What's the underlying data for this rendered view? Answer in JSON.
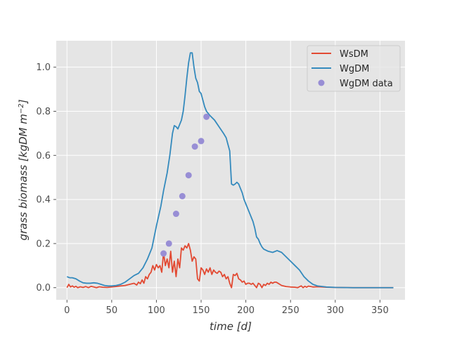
{
  "chart_data": {
    "type": "line",
    "xlabel": "time [d]",
    "ylabel": "grass biomass [kgDM m^-2]",
    "ylabel_parts": {
      "main": "grass biomass [kgDM m",
      "sup": "−2",
      "end": "]"
    },
    "xlim": [
      -12,
      378
    ],
    "ylim": [
      -0.055,
      1.12
    ],
    "xticks": [
      0,
      50,
      100,
      150,
      200,
      250,
      300,
      350
    ],
    "xtick_labels": [
      "0",
      "50",
      "100",
      "150",
      "200",
      "250",
      "300",
      "350"
    ],
    "yticks": [
      0.0,
      0.2,
      0.4,
      0.6,
      0.8,
      1.0
    ],
    "ytick_labels": [
      "0.0",
      "0.2",
      "0.4",
      "0.6",
      "0.8",
      "1.0"
    ],
    "grid": true,
    "legend_position": "top-right",
    "colors": {
      "background": "#e5e5e5",
      "grid": "#ffffff",
      "WsDM": "#e24a33",
      "WgDM": "#348abd",
      "WgDM data": "#988ed5"
    },
    "series": [
      {
        "name": "WsDM",
        "kind": "line",
        "color": "#e24a33",
        "x": [
          0,
          2,
          4,
          6,
          8,
          10,
          12,
          15,
          18,
          21,
          24,
          27,
          30,
          33,
          36,
          40,
          45,
          50,
          55,
          60,
          65,
          70,
          75,
          78,
          80,
          82,
          84,
          86,
          88,
          90,
          92,
          94,
          96,
          98,
          100,
          102,
          104,
          106,
          108,
          110,
          112,
          114,
          116,
          118,
          120,
          122,
          124,
          126,
          128,
          130,
          132,
          134,
          136,
          138,
          140,
          142,
          144,
          146,
          148,
          150,
          152,
          154,
          156,
          158,
          160,
          162,
          164,
          166,
          168,
          170,
          172,
          174,
          176,
          178,
          180,
          182,
          184,
          186,
          188,
          190,
          192,
          194,
          196,
          198,
          200,
          202,
          204,
          206,
          208,
          210,
          212,
          214,
          216,
          218,
          220,
          222,
          224,
          226,
          228,
          230,
          232,
          234,
          236,
          238,
          240,
          245,
          250,
          255,
          258,
          260,
          262,
          264,
          266,
          268,
          270,
          275,
          280,
          290,
          300,
          320,
          340,
          365
        ],
        "values": [
          0.0,
          0.015,
          0.003,
          0.008,
          0.002,
          0.006,
          0.0,
          0.004,
          0.001,
          0.005,
          0.0,
          0.006,
          0.003,
          0.0,
          0.004,
          0.002,
          0.001,
          0.003,
          0.005,
          0.008,
          0.01,
          0.015,
          0.02,
          0.012,
          0.025,
          0.018,
          0.035,
          0.02,
          0.05,
          0.04,
          0.06,
          0.07,
          0.1,
          0.08,
          0.105,
          0.09,
          0.1,
          0.07,
          0.16,
          0.1,
          0.13,
          0.09,
          0.165,
          0.07,
          0.12,
          0.05,
          0.13,
          0.09,
          0.18,
          0.17,
          0.19,
          0.18,
          0.2,
          0.17,
          0.12,
          0.14,
          0.13,
          0.04,
          0.03,
          0.09,
          0.08,
          0.06,
          0.085,
          0.07,
          0.09,
          0.06,
          0.08,
          0.07,
          0.065,
          0.075,
          0.07,
          0.05,
          0.06,
          0.04,
          0.05,
          0.02,
          0.0,
          0.06,
          0.055,
          0.065,
          0.04,
          0.035,
          0.025,
          0.03,
          0.015,
          0.02,
          0.02,
          0.015,
          0.02,
          0.01,
          0.0,
          0.02,
          0.015,
          0.0,
          0.015,
          0.01,
          0.02,
          0.015,
          0.025,
          0.02,
          0.025,
          0.025,
          0.02,
          0.015,
          0.01,
          0.005,
          0.003,
          0.002,
          0.0,
          0.004,
          0.008,
          0.0,
          0.006,
          0.002,
          0.007,
          0.003,
          0.004,
          0.002,
          0.001,
          0.0,
          0.0,
          0.0
        ]
      },
      {
        "name": "WgDM",
        "kind": "line",
        "color": "#348abd",
        "x": [
          0,
          3,
          6,
          10,
          14,
          18,
          22,
          26,
          30,
          34,
          38,
          42,
          46,
          50,
          55,
          60,
          65,
          70,
          75,
          80,
          85,
          90,
          95,
          100,
          105,
          108,
          110,
          112,
          115,
          118,
          120,
          122,
          124,
          126,
          128,
          130,
          132,
          134,
          136,
          138,
          140,
          142,
          144,
          146,
          148,
          150,
          152,
          154,
          156,
          158,
          160,
          165,
          170,
          175,
          178,
          180,
          182,
          184,
          186,
          188,
          190,
          192,
          194,
          196,
          198,
          200,
          205,
          208,
          210,
          212,
          214,
          216,
          218,
          220,
          225,
          230,
          235,
          240,
          245,
          250,
          255,
          260,
          265,
          270,
          275,
          280,
          290,
          300,
          320,
          340,
          365
        ],
        "values": [
          0.05,
          0.045,
          0.045,
          0.04,
          0.03,
          0.022,
          0.02,
          0.02,
          0.022,
          0.02,
          0.015,
          0.01,
          0.008,
          0.008,
          0.01,
          0.015,
          0.025,
          0.04,
          0.055,
          0.065,
          0.09,
          0.13,
          0.18,
          0.28,
          0.37,
          0.44,
          0.48,
          0.52,
          0.6,
          0.7,
          0.735,
          0.73,
          0.72,
          0.74,
          0.76,
          0.8,
          0.87,
          0.95,
          1.02,
          1.065,
          1.065,
          1.0,
          0.95,
          0.93,
          0.89,
          0.88,
          0.85,
          0.82,
          0.8,
          0.79,
          0.78,
          0.76,
          0.73,
          0.7,
          0.68,
          0.65,
          0.62,
          0.47,
          0.465,
          0.47,
          0.478,
          0.47,
          0.45,
          0.43,
          0.4,
          0.38,
          0.33,
          0.3,
          0.27,
          0.23,
          0.22,
          0.2,
          0.185,
          0.175,
          0.165,
          0.16,
          0.168,
          0.16,
          0.14,
          0.12,
          0.1,
          0.08,
          0.05,
          0.03,
          0.015,
          0.008,
          0.003,
          0.001,
          0.0,
          0.0,
          0.0
        ]
      },
      {
        "name": "WgDM data",
        "kind": "scatter",
        "color": "#988ed5",
        "x": [
          108,
          114,
          122,
          129,
          136,
          143,
          150,
          156
        ],
        "values": [
          0.155,
          0.2,
          0.335,
          0.415,
          0.51,
          0.64,
          0.665,
          0.775
        ]
      }
    ]
  }
}
